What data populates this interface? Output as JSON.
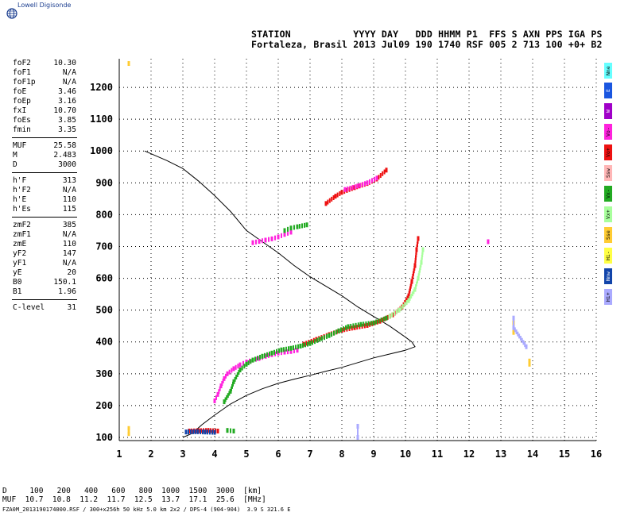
{
  "logo": {
    "text": "Lowell Digisonde",
    "icon": "globe-icon"
  },
  "header": {
    "line1": "STATION           YYYY DAY   DDD HHMM P1  FFS S AXN PPS IGA PS",
    "line2": "Fortaleza, Brasil 2013 Jul09 190 1740 RSF 005 2 713 100 +0+ B2"
  },
  "params": [
    {
      "k": "foF2",
      "v": "10.30"
    },
    {
      "k": "foF1",
      "v": "N/A"
    },
    {
      "k": "foF1p",
      "v": "N/A"
    },
    {
      "k": "foE",
      "v": "3.46"
    },
    {
      "k": "foEp",
      "v": "3.16"
    },
    {
      "k": "fxI",
      "v": "10.70"
    },
    {
      "k": "foEs",
      "v": "3.85"
    },
    {
      "k": "fmin",
      "v": "3.35"
    },
    {
      "k": "MUF",
      "v": "25.58"
    },
    {
      "k": "M",
      "v": "2.483"
    },
    {
      "k": "D",
      "v": "3000"
    },
    {
      "k": "h'F",
      "v": "313"
    },
    {
      "k": "h'F2",
      "v": "N/A"
    },
    {
      "k": "h'E",
      "v": "110"
    },
    {
      "k": "h'Es",
      "v": "115"
    },
    {
      "k": "zmF2",
      "v": "385"
    },
    {
      "k": "zmF1",
      "v": "N/A"
    },
    {
      "k": "zmE",
      "v": "110"
    },
    {
      "k": "yF2",
      "v": "147"
    },
    {
      "k": "yF1",
      "v": "N/A"
    },
    {
      "k": "yE",
      "v": "20"
    },
    {
      "k": "B0",
      "v": "150.1"
    },
    {
      "k": "B1",
      "v": "1.96"
    },
    {
      "k": "C-level",
      "v": "31"
    }
  ],
  "legend": [
    {
      "label": "Nne",
      "color": "#66ffff"
    },
    {
      "label": "E",
      "color": "#1a56e0"
    },
    {
      "label": "W",
      "color": "#a000c8"
    },
    {
      "label": "Vo-",
      "color": "#ff22dd"
    },
    {
      "label": "Vo+",
      "color": "#ee1111"
    },
    {
      "label": "Ssw",
      "color": "#ffb6b6"
    },
    {
      "label": "Vx-",
      "color": "#22aa22"
    },
    {
      "label": "Vx+",
      "color": "#a8ff9c"
    },
    {
      "label": "Sse",
      "color": "#ffcc33"
    },
    {
      "label": "Hi-",
      "color": "#ffff44"
    },
    {
      "label": "Nnw",
      "color": "#1144aa"
    },
    {
      "label": "Hi+",
      "color": "#aaaaff"
    }
  ],
  "footer": {
    "d_row": "D     100   200   400   600   800  1000  1500  3000  [km]",
    "muf_row": "MUF  10.7  10.8  11.2  11.7  12.5  13.7  17.1  25.6  [MHz]",
    "file_row": "FZA0M_2013190174000.RSF / 300+x256h 50 kHz 5.0 km 2x2 / DPS-4 (904-904)  3.9 S 321.6 E"
  },
  "chart_data": {
    "type": "scatter",
    "xlim": [
      1,
      16
    ],
    "ylim": [
      90,
      1290
    ],
    "xticks": [
      "1",
      "2",
      "3",
      "4",
      "5",
      "6",
      "7",
      "8",
      "9",
      "10",
      "11",
      "12",
      "13",
      "14",
      "15",
      "16"
    ],
    "yticks": [
      "100",
      "200",
      "300",
      "400",
      "500",
      "600",
      "700",
      "800",
      "900",
      "1000",
      "1100",
      "1200"
    ],
    "grid": true,
    "profile": [
      [
        3.0,
        100
      ],
      [
        3.3,
        113
      ],
      [
        3.6,
        140
      ],
      [
        4.0,
        170
      ],
      [
        4.5,
        205
      ],
      [
        5.0,
        232
      ],
      [
        5.5,
        253
      ],
      [
        6.0,
        270
      ],
      [
        6.5,
        283
      ],
      [
        7.0,
        295
      ],
      [
        7.5,
        308
      ],
      [
        8.0,
        320
      ],
      [
        8.5,
        335
      ],
      [
        9.0,
        350
      ],
      [
        9.5,
        362
      ],
      [
        10.0,
        374
      ],
      [
        10.3,
        385
      ],
      [
        10.2,
        400
      ],
      [
        10.0,
        415
      ],
      [
        9.5,
        450
      ],
      [
        9.0,
        480
      ],
      [
        8.5,
        510
      ],
      [
        8.0,
        545
      ],
      [
        7.5,
        575
      ],
      [
        7.0,
        605
      ],
      [
        6.5,
        640
      ],
      [
        6.0,
        680
      ],
      [
        5.5,
        715
      ],
      [
        5.0,
        750
      ],
      [
        4.5,
        810
      ],
      [
        4.0,
        860
      ],
      [
        3.5,
        905
      ],
      [
        3.0,
        945
      ],
      [
        2.5,
        970
      ],
      [
        1.8,
        1000
      ]
    ],
    "traces": [
      {
        "name": "Vo+",
        "color": "#ee1111",
        "points": [
          [
            3.2,
            120
          ],
          [
            3.5,
            121
          ],
          [
            3.8,
            122
          ],
          [
            4.1,
            120
          ],
          [
            6.8,
            393
          ],
          [
            7.2,
            408
          ],
          [
            7.6,
            423
          ],
          [
            8.0,
            437
          ],
          [
            8.4,
            445
          ],
          [
            8.8,
            452
          ],
          [
            9.2,
            465
          ],
          [
            9.6,
            485
          ],
          [
            9.9,
            510
          ],
          [
            10.1,
            545
          ],
          [
            10.2,
            590
          ],
          [
            10.3,
            640
          ],
          [
            10.35,
            690
          ],
          [
            10.4,
            725
          ],
          [
            7.5,
            835
          ],
          [
            7.8,
            858
          ],
          [
            8.0,
            870
          ],
          [
            8.4,
            885
          ],
          [
            8.8,
            898
          ],
          [
            9.1,
            912
          ],
          [
            9.4,
            940
          ]
        ]
      },
      {
        "name": "Vo-",
        "color": "#ff22dd",
        "points": [
          [
            4.0,
            215
          ],
          [
            4.1,
            235
          ],
          [
            4.2,
            262
          ],
          [
            4.3,
            285
          ],
          [
            4.4,
            300
          ],
          [
            4.6,
            316
          ],
          [
            4.8,
            328
          ],
          [
            5.0,
            337
          ],
          [
            5.2,
            343
          ],
          [
            5.4,
            348
          ],
          [
            5.6,
            355
          ],
          [
            5.8,
            360
          ],
          [
            6.0,
            365
          ],
          [
            6.2,
            368
          ],
          [
            6.4,
            370
          ],
          [
            6.6,
            374
          ],
          [
            5.2,
            712
          ],
          [
            5.4,
            716
          ],
          [
            5.6,
            720
          ],
          [
            5.8,
            724
          ],
          [
            6.0,
            730
          ],
          [
            6.2,
            738
          ],
          [
            6.4,
            745
          ],
          [
            8.1,
            879
          ],
          [
            8.5,
            890
          ],
          [
            8.8,
            900
          ],
          [
            9.1,
            915
          ],
          [
            12.6,
            715
          ]
        ]
      },
      {
        "name": "Vx-",
        "color": "#22aa22",
        "points": [
          [
            4.3,
            212
          ],
          [
            4.5,
            245
          ],
          [
            4.6,
            275
          ],
          [
            4.8,
            312
          ],
          [
            5.0,
            330
          ],
          [
            5.2,
            343
          ],
          [
            5.5,
            355
          ],
          [
            5.8,
            365
          ],
          [
            6.1,
            375
          ],
          [
            6.4,
            380
          ],
          [
            6.7,
            387
          ],
          [
            7.0,
            395
          ],
          [
            7.3,
            408
          ],
          [
            7.6,
            420
          ],
          [
            7.9,
            435
          ],
          [
            8.2,
            448
          ],
          [
            8.6,
            455
          ],
          [
            9.0,
            460
          ],
          [
            9.4,
            475
          ],
          [
            6.2,
            750
          ],
          [
            6.4,
            758
          ],
          [
            6.6,
            762
          ],
          [
            6.9,
            768
          ],
          [
            4.4,
            122
          ],
          [
            4.6,
            120
          ]
        ]
      },
      {
        "name": "Vx+",
        "color": "#a8ff9c",
        "points": [
          [
            9.5,
            480
          ],
          [
            9.8,
            500
          ],
          [
            10.1,
            530
          ],
          [
            10.3,
            565
          ],
          [
            10.4,
            600
          ],
          [
            10.5,
            650
          ],
          [
            10.55,
            690
          ]
        ]
      },
      {
        "name": "Nnw",
        "color": "#1144aa",
        "points": [
          [
            3.1,
            117
          ],
          [
            3.4,
            118
          ],
          [
            3.7,
            117
          ],
          [
            4.0,
            116
          ]
        ]
      },
      {
        "name": "Sse",
        "color": "#ffcc33",
        "points": [
          [
            1.3,
            1275
          ],
          [
            1.3,
            112
          ],
          [
            1.3,
            128
          ],
          [
            13.4,
            460
          ],
          [
            13.4,
            430
          ],
          [
            13.9,
            330
          ],
          [
            13.9,
            340
          ]
        ]
      },
      {
        "name": "Hi+",
        "color": "#aaaaff",
        "points": [
          [
            13.4,
            475
          ],
          [
            13.4,
            445
          ],
          [
            13.8,
            385
          ],
          [
            8.5,
            135
          ],
          [
            8.5,
            100
          ]
        ]
      }
    ]
  }
}
